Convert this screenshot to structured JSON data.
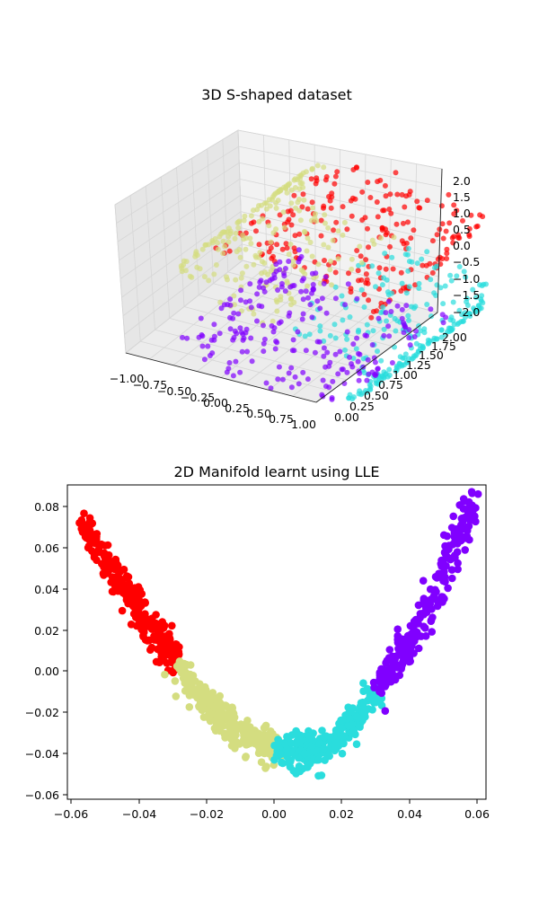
{
  "chart_data": [
    {
      "type": "scatter3d",
      "title": "3D S-shaped dataset",
      "x_ticks": [
        "−1.00",
        "−0.75",
        "−0.50",
        "−0.25",
        "0.00",
        "0.25",
        "0.50",
        "0.75",
        "1.00"
      ],
      "y_ticks": [
        "0.00",
        "0.25",
        "0.50",
        "0.75",
        "1.00",
        "1.25",
        "1.50",
        "1.75",
        "2.00"
      ],
      "z_ticks": [
        "−2.0",
        "−1.5",
        "−1.0",
        "−0.5",
        "0.0",
        "0.5",
        "1.0",
        "1.5",
        "2.0"
      ],
      "xlim": [
        -1,
        1
      ],
      "ylim": [
        0,
        2
      ],
      "zlim": [
        -2,
        2
      ],
      "colormap": "rainbow",
      "cluster_colors": {
        "purple": "#8000ff",
        "cyan": "#2adddd",
        "khaki": "#d4dd80",
        "red": "#ff0000"
      }
    },
    {
      "type": "scatter",
      "title": "2D Manifold learnt using LLE",
      "xlim": [
        -0.06,
        0.06
      ],
      "ylim": [
        -0.06,
        0.09
      ],
      "x_ticks": [
        "−0.06",
        "−0.04",
        "−0.02",
        "0.00",
        "0.02",
        "0.04",
        "0.06"
      ],
      "y_ticks": [
        "−0.06",
        "−0.04",
        "−0.02",
        "0.00",
        "0.02",
        "0.04",
        "0.06",
        "0.08"
      ],
      "curve": {
        "x": [
          -0.056,
          -0.046,
          -0.036,
          -0.028,
          -0.02,
          -0.01,
          0.0,
          0.008,
          0.016,
          0.024,
          0.032,
          0.04,
          0.048,
          0.057
        ],
        "y": [
          0.072,
          0.046,
          0.022,
          0.004,
          -0.016,
          -0.029,
          -0.036,
          -0.038,
          -0.032,
          -0.02,
          0.0,
          0.02,
          0.048,
          0.084
        ]
      },
      "clusters": [
        {
          "name": "red",
          "color": "#ff0000",
          "x_range": [
            -0.056,
            -0.028
          ]
        },
        {
          "name": "khaki",
          "color": "#d4dd80",
          "x_range": [
            -0.028,
            0.0
          ]
        },
        {
          "name": "cyan",
          "color": "#2adddd",
          "x_range": [
            0.0,
            0.029
          ]
        },
        {
          "name": "purple",
          "color": "#8000ff",
          "x_range": [
            0.029,
            0.057
          ]
        }
      ]
    }
  ]
}
